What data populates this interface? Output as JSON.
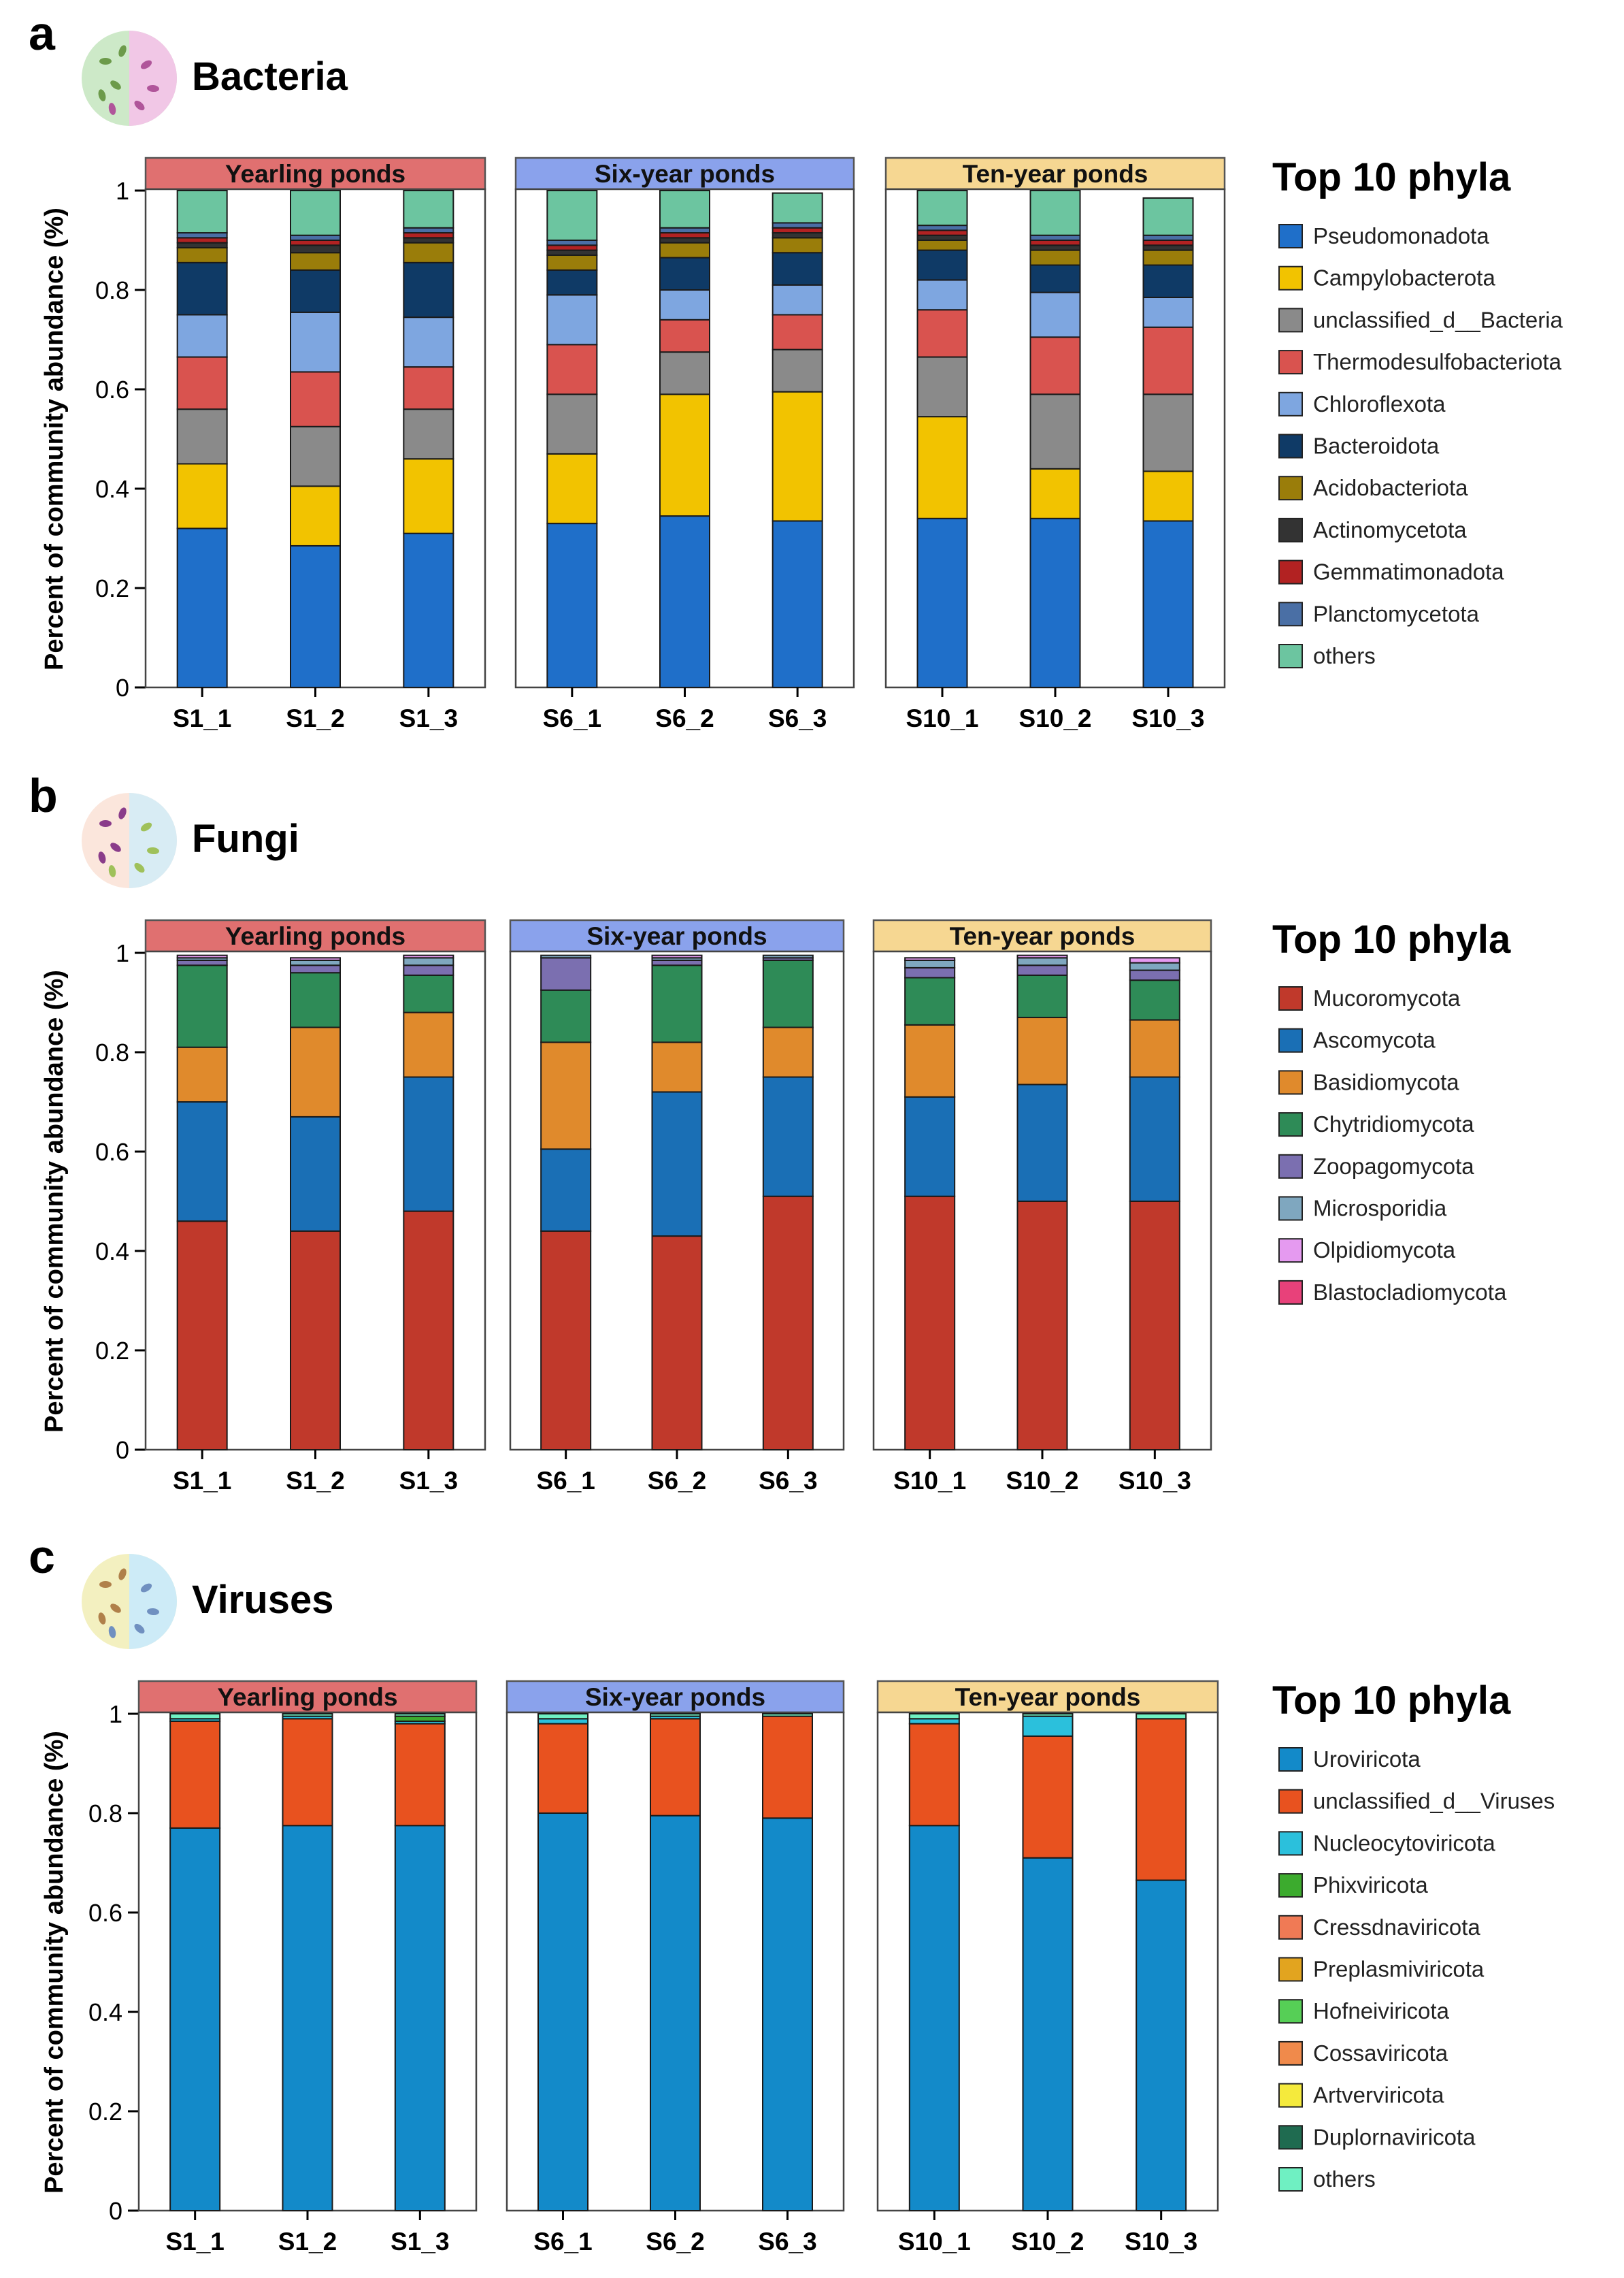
{
  "colors": {
    "yearling": "#e07070",
    "sixyear": "#8aa2ec",
    "tenyear": "#f6d792"
  },
  "chart_data": [
    {
      "type": "bar",
      "stacked": true,
      "panel_letter": "a",
      "title": "Bacteria",
      "icon": "bacteria-icon",
      "ylabel": "Percent of community abundance (%)",
      "ylim": [
        0,
        1
      ],
      "yticks": [
        "0",
        "0.2",
        "0.4",
        "0.6",
        "0.8",
        "1"
      ],
      "legend_title": "Top 10 phyla",
      "legend_position": "right",
      "groups": [
        {
          "label": "Yearling ponds",
          "color_key": "yearling",
          "categories": [
            "S1_1",
            "S1_2",
            "S1_3"
          ]
        },
        {
          "label": "Six-year ponds",
          "color_key": "sixyear",
          "categories": [
            "S6_1",
            "S6_2",
            "S6_3"
          ]
        },
        {
          "label": "Ten-year ponds",
          "color_key": "tenyear",
          "categories": [
            "S10_1",
            "S10_2",
            "S10_3"
          ]
        }
      ],
      "series": [
        {
          "name": "Pseudomonadota",
          "color": "#1f6fc9",
          "values": [
            0.32,
            0.285,
            0.31,
            0.33,
            0.345,
            0.335,
            0.34,
            0.34,
            0.335
          ]
        },
        {
          "name": "Campylobacterota",
          "color": "#f2c300",
          "values": [
            0.13,
            0.12,
            0.15,
            0.14,
            0.245,
            0.26,
            0.205,
            0.1,
            0.1
          ]
        },
        {
          "name": "unclassified_d__Bacteria",
          "color": "#8a8a8a",
          "values": [
            0.11,
            0.12,
            0.1,
            0.12,
            0.085,
            0.085,
            0.12,
            0.15,
            0.155
          ]
        },
        {
          "name": "Thermodesulfobacteriota",
          "color": "#d9534f",
          "values": [
            0.105,
            0.11,
            0.085,
            0.1,
            0.065,
            0.07,
            0.095,
            0.115,
            0.135
          ]
        },
        {
          "name": "Chloroflexota",
          "color": "#7ea6e0",
          "values": [
            0.085,
            0.12,
            0.1,
            0.1,
            0.06,
            0.06,
            0.06,
            0.09,
            0.06
          ]
        },
        {
          "name": "Bacteroidota",
          "color": "#0f3a66",
          "values": [
            0.105,
            0.085,
            0.11,
            0.05,
            0.065,
            0.065,
            0.06,
            0.055,
            0.065
          ]
        },
        {
          "name": "Acidobacteriota",
          "color": "#9a7d0a",
          "values": [
            0.03,
            0.035,
            0.04,
            0.03,
            0.03,
            0.03,
            0.02,
            0.03,
            0.03
          ]
        },
        {
          "name": "Actinomycetota",
          "color": "#333333",
          "values": [
            0.01,
            0.015,
            0.01,
            0.01,
            0.01,
            0.01,
            0.01,
            0.01,
            0.01
          ]
        },
        {
          "name": "Gemmatimonadota",
          "color": "#b22222",
          "values": [
            0.01,
            0.01,
            0.01,
            0.01,
            0.01,
            0.01,
            0.01,
            0.01,
            0.01
          ]
        },
        {
          "name": "Planctomycetota",
          "color": "#4a6fa5",
          "values": [
            0.01,
            0.01,
            0.01,
            0.01,
            0.01,
            0.01,
            0.01,
            0.01,
            0.01
          ]
        },
        {
          "name": "others",
          "color": "#6cc5a0",
          "values": [
            0.085,
            0.09,
            0.075,
            0.1,
            0.075,
            0.06,
            0.07,
            0.09,
            0.075
          ]
        }
      ]
    },
    {
      "type": "bar",
      "stacked": true,
      "panel_letter": "b",
      "title": "Fungi",
      "icon": "fungi-icon",
      "ylabel": "Percent of community abundance (%)",
      "ylim": [
        0,
        1
      ],
      "yticks": [
        "0",
        "0.2",
        "0.4",
        "0.6",
        "0.8",
        "1"
      ],
      "legend_title": "Top 10 phyla",
      "legend_position": "right",
      "groups": [
        {
          "label": "Yearling ponds",
          "color_key": "yearling",
          "categories": [
            "S1_1",
            "S1_2",
            "S1_3"
          ]
        },
        {
          "label": "Six-year ponds",
          "color_key": "sixyear",
          "categories": [
            "S6_1",
            "S6_2",
            "S6_3"
          ]
        },
        {
          "label": "Ten-year ponds",
          "color_key": "tenyear",
          "categories": [
            "S10_1",
            "S10_2",
            "S10_3"
          ]
        }
      ],
      "series": [
        {
          "name": "Mucoromycota",
          "color": "#c0392b",
          "values": [
            0.46,
            0.44,
            0.48,
            0.44,
            0.43,
            0.51,
            0.51,
            0.5,
            0.5
          ]
        },
        {
          "name": "Ascomycota",
          "color": "#1a6fb5",
          "values": [
            0.24,
            0.23,
            0.27,
            0.165,
            0.29,
            0.24,
            0.2,
            0.235,
            0.25
          ]
        },
        {
          "name": "Basidiomycota",
          "color": "#e08a2c",
          "values": [
            0.11,
            0.18,
            0.13,
            0.215,
            0.1,
            0.1,
            0.145,
            0.135,
            0.115
          ]
        },
        {
          "name": "Chytridiomycota",
          "color": "#2e8b57",
          "values": [
            0.165,
            0.11,
            0.075,
            0.105,
            0.155,
            0.135,
            0.095,
            0.085,
            0.08
          ]
        },
        {
          "name": "Zoopagomycota",
          "color": "#7b6fb0",
          "values": [
            0.01,
            0.015,
            0.02,
            0.065,
            0.01,
            0.005,
            0.02,
            0.02,
            0.02
          ]
        },
        {
          "name": "Microsporidia",
          "color": "#7fa7bf",
          "values": [
            0.005,
            0.01,
            0.015,
            0.005,
            0.005,
            0.005,
            0.015,
            0.015,
            0.015
          ]
        },
        {
          "name": "Olpidiomycota",
          "color": "#e59af0",
          "values": [
            0.005,
            0.005,
            0.005,
            0.0,
            0.005,
            0.0,
            0.005,
            0.005,
            0.01
          ]
        },
        {
          "name": "Blastocladiomycota",
          "color": "#e8417a",
          "values": [
            0.0,
            0.0,
            0.0,
            0.0,
            0.0,
            0.0,
            0.0,
            0.0,
            0.0
          ]
        }
      ]
    },
    {
      "type": "bar",
      "stacked": true,
      "panel_letter": "c",
      "title": "Viruses",
      "icon": "viruses-icon",
      "ylabel": "Percent of community abundance (%)",
      "ylim": [
        0,
        1
      ],
      "yticks": [
        "0",
        "0.2",
        "0.4",
        "0.6",
        "0.8",
        "1"
      ],
      "legend_title": "Top 10 phyla",
      "legend_position": "right",
      "groups": [
        {
          "label": "Yearling ponds",
          "color_key": "yearling",
          "categories": [
            "S1_1",
            "S1_2",
            "S1_3"
          ]
        },
        {
          "label": "Six-year ponds",
          "color_key": "sixyear",
          "categories": [
            "S6_1",
            "S6_2",
            "S6_3"
          ]
        },
        {
          "label": "Ten-year ponds",
          "color_key": "tenyear",
          "categories": [
            "S10_1",
            "S10_2",
            "S10_3"
          ]
        }
      ],
      "series": [
        {
          "name": "Uroviricota",
          "color": "#138ac9",
          "values": [
            0.77,
            0.775,
            0.775,
            0.8,
            0.795,
            0.79,
            0.775,
            0.71,
            0.665
          ]
        },
        {
          "name": "unclassified_d__Viruses",
          "color": "#e8521f",
          "values": [
            0.215,
            0.215,
            0.205,
            0.18,
            0.195,
            0.205,
            0.205,
            0.245,
            0.325
          ]
        },
        {
          "name": "Nucleocytoviricota",
          "color": "#2bc0dc",
          "values": [
            0.005,
            0.005,
            0.005,
            0.01,
            0.005,
            0.0,
            0.01,
            0.04,
            0.0
          ]
        },
        {
          "name": "Phixviricota",
          "color": "#3cab2e",
          "values": [
            0.0,
            0.0,
            0.01,
            0.0,
            0.0,
            0.0,
            0.0,
            0.0,
            0.0
          ]
        },
        {
          "name": "Cressdnaviricota",
          "color": "#f07a55",
          "values": [
            0.0,
            0.0,
            0.0,
            0.0,
            0.0,
            0.0,
            0.0,
            0.0,
            0.0
          ]
        },
        {
          "name": "Preplasmiviricota",
          "color": "#e2a41f",
          "values": [
            0.0,
            0.0,
            0.0,
            0.0,
            0.0,
            0.0,
            0.0,
            0.0,
            0.0
          ]
        },
        {
          "name": "Hofneiviricota",
          "color": "#56cf56",
          "values": [
            0.0,
            0.0,
            0.0,
            0.0,
            0.0,
            0.0,
            0.0,
            0.0,
            0.0
          ]
        },
        {
          "name": "Cossaviricota",
          "color": "#f08a4b",
          "values": [
            0.0,
            0.0,
            0.0,
            0.0,
            0.0,
            0.0,
            0.0,
            0.0,
            0.0
          ]
        },
        {
          "name": "Artverviricota",
          "color": "#f5ea3c",
          "values": [
            0.0,
            0.0,
            0.0,
            0.0,
            0.0,
            0.0,
            0.0,
            0.0,
            0.0
          ]
        },
        {
          "name": "Duplornaviricota",
          "color": "#1f6b50",
          "values": [
            0.0,
            0.0,
            0.0,
            0.0,
            0.0,
            0.0,
            0.0,
            0.0,
            0.0
          ]
        },
        {
          "name": "others",
          "color": "#6ff0c2",
          "values": [
            0.01,
            0.005,
            0.005,
            0.01,
            0.005,
            0.005,
            0.01,
            0.005,
            0.01
          ]
        }
      ]
    }
  ]
}
